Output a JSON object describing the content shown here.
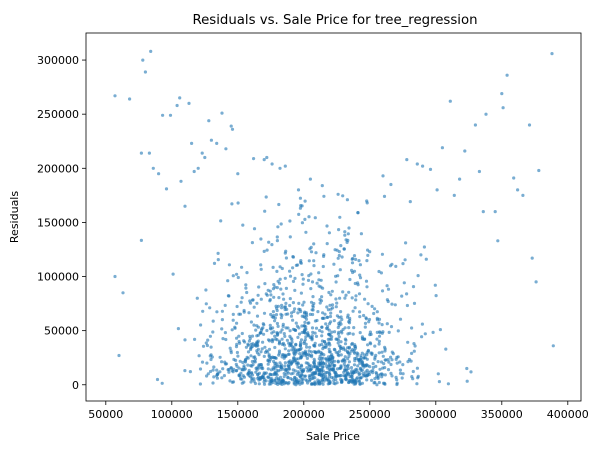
{
  "chart_data": {
    "type": "scatter",
    "title": "Residuals vs. Sale Price for tree_regression",
    "xlabel": "Sale Price",
    "ylabel": "Residuals",
    "xlim": [
      35000,
      410000
    ],
    "ylim": [
      -15000,
      325000
    ],
    "xticks": [
      50000,
      100000,
      150000,
      200000,
      250000,
      300000,
      350000,
      400000
    ],
    "yticks": [
      0,
      50000,
      100000,
      150000,
      200000,
      250000,
      300000
    ],
    "grid": false,
    "legend": "none",
    "point_color": "#1f77b4",
    "point_opacity": 0.6,
    "outlier_points": [
      [
        57000,
        267000
      ],
      [
        57000,
        100000
      ],
      [
        60000,
        27000
      ],
      [
        63000,
        85000
      ],
      [
        68000,
        264000
      ],
      [
        77000,
        214000
      ],
      [
        78000,
        300000
      ],
      [
        80000,
        289000
      ],
      [
        84000,
        308000
      ],
      [
        83000,
        214000
      ],
      [
        86000,
        200000
      ],
      [
        90000,
        195000
      ],
      [
        93000,
        249000
      ],
      [
        96000,
        181000
      ],
      [
        99000,
        249000
      ],
      [
        104000,
        258000
      ],
      [
        106000,
        265000
      ],
      [
        107000,
        188000
      ],
      [
        110000,
        165000
      ],
      [
        113000,
        260000
      ],
      [
        115000,
        223000
      ],
      [
        117000,
        197000
      ],
      [
        120000,
        200000
      ],
      [
        123000,
        214000
      ],
      [
        125000,
        210000
      ],
      [
        128000,
        244000
      ],
      [
        130000,
        226000
      ],
      [
        134000,
        223000
      ],
      [
        138000,
        251000
      ],
      [
        141000,
        218000
      ],
      [
        145000,
        239000
      ],
      [
        146000,
        236000
      ],
      [
        150000,
        195000
      ],
      [
        162000,
        209000
      ],
      [
        170000,
        208000
      ],
      [
        172000,
        210000
      ],
      [
        176000,
        204000
      ],
      [
        182000,
        200000
      ],
      [
        186000,
        202000
      ],
      [
        196000,
        180000
      ],
      [
        205000,
        190000
      ],
      [
        214000,
        184000
      ],
      [
        226000,
        176000
      ],
      [
        233000,
        171000
      ],
      [
        248000,
        168000
      ],
      [
        260000,
        193000
      ],
      [
        266000,
        185000
      ],
      [
        278000,
        208000
      ],
      [
        286000,
        204000
      ],
      [
        290000,
        202000
      ],
      [
        296000,
        199000
      ],
      [
        301000,
        180000
      ],
      [
        305000,
        219000
      ],
      [
        311000,
        262000
      ],
      [
        314000,
        175000
      ],
      [
        318000,
        190000
      ],
      [
        322000,
        216000
      ],
      [
        330000,
        240000
      ],
      [
        333000,
        197000
      ],
      [
        338000,
        250000
      ],
      [
        345000,
        160000
      ],
      [
        350000,
        269000
      ],
      [
        351000,
        256000
      ],
      [
        354000,
        286000
      ],
      [
        359000,
        191000
      ],
      [
        362000,
        180000
      ],
      [
        366000,
        175000
      ],
      [
        371000,
        240000
      ],
      [
        378000,
        198000
      ],
      [
        388000,
        306000
      ],
      [
        389000,
        36000
      ],
      [
        376000,
        95000
      ],
      [
        373000,
        117000
      ],
      [
        347000,
        133000
      ],
      [
        336000,
        160000
      ]
    ]
  }
}
